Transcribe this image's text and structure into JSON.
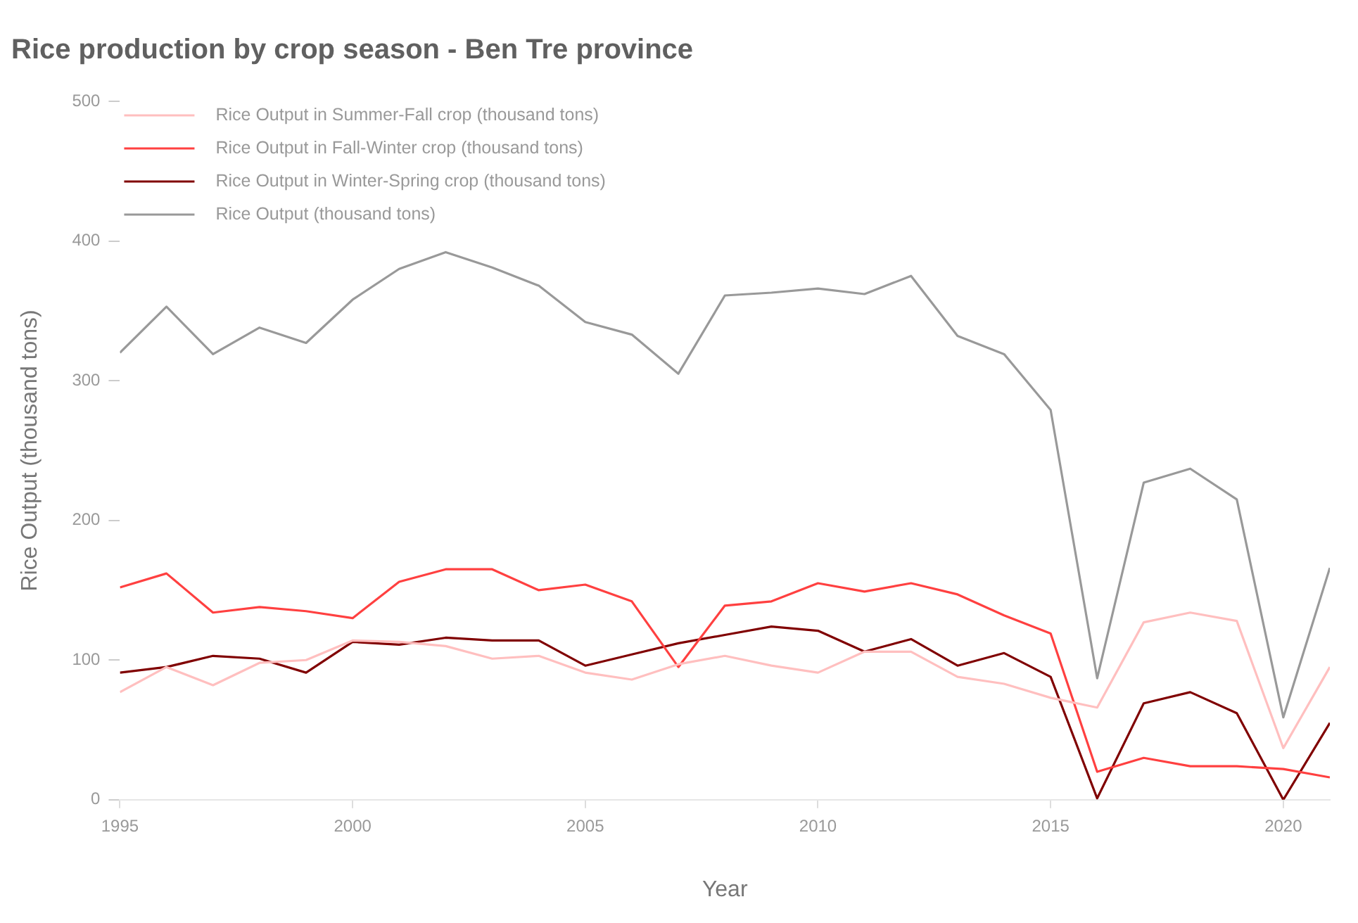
{
  "chart_data": {
    "type": "line",
    "title": "Rice production by crop season - Ben Tre province",
    "xlabel": "Year",
    "ylabel": "Rice Output (thousand tons)",
    "x": [
      1995,
      1996,
      1997,
      1998,
      1999,
      2000,
      2001,
      2002,
      2003,
      2004,
      2005,
      2006,
      2007,
      2008,
      2009,
      2010,
      2011,
      2012,
      2013,
      2014,
      2015,
      2016,
      2017,
      2018,
      2019,
      2020,
      2021
    ],
    "series": [
      {
        "name": "Rice Output in Summer-Fall crop (thousand tons)",
        "color": "#ffbfbf",
        "values": [
          77,
          95,
          82,
          98,
          100,
          114,
          113,
          110,
          101,
          103,
          91,
          86,
          97,
          103,
          96,
          91,
          106,
          106,
          88,
          83,
          73,
          66,
          127,
          134,
          128,
          37,
          95
        ]
      },
      {
        "name": "Rice Output in Fall-Winter crop (thousand tons)",
        "color": "#ff4040",
        "values": [
          152,
          162,
          134,
          138,
          135,
          130,
          156,
          165,
          165,
          150,
          154,
          142,
          95,
          139,
          142,
          155,
          149,
          155,
          147,
          132,
          119,
          20,
          30,
          24,
          24,
          22,
          16
        ]
      },
      {
        "name": "Rice Output in Winter-Spring crop (thousand tons)",
        "color": "#800000",
        "values": [
          91,
          95,
          103,
          101,
          91,
          113,
          111,
          116,
          114,
          114,
          96,
          104,
          112,
          118,
          124,
          121,
          106,
          115,
          96,
          105,
          88,
          1,
          69,
          77,
          62,
          0,
          55
        ]
      },
      {
        "name": "Rice Output (thousand tons)",
        "color": "#999999",
        "values": [
          320,
          353,
          319,
          338,
          327,
          358,
          380,
          392,
          381,
          368,
          342,
          333,
          305,
          361,
          363,
          366,
          362,
          375,
          332,
          319,
          279,
          87,
          227,
          237,
          215,
          59,
          166
        ]
      }
    ],
    "xlim": [
      1995,
      2021
    ],
    "xticks": [
      1995,
      2000,
      2005,
      2010,
      2015,
      2020
    ],
    "ylim": [
      0,
      500
    ],
    "yticks": [
      0,
      100,
      200,
      300,
      400,
      500
    ],
    "grid": false,
    "legend": "top left",
    "marker": "none",
    "line_style": "solid"
  }
}
